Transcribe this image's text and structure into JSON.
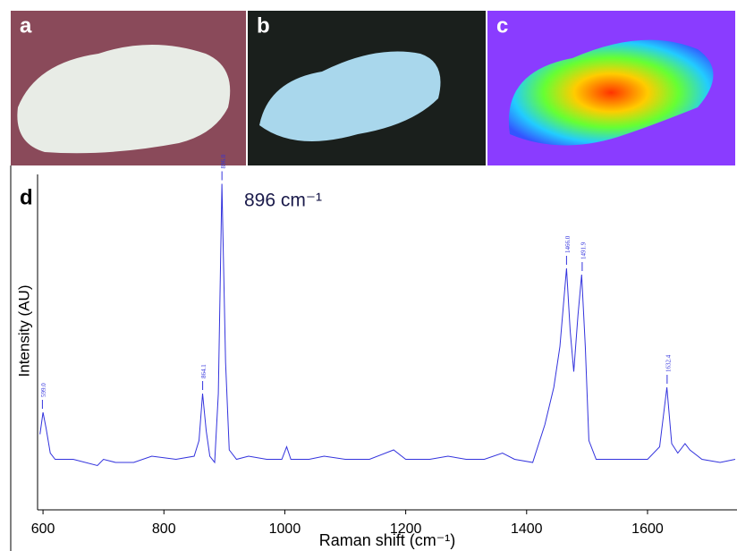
{
  "panels": {
    "a": "a",
    "b": "b",
    "c": "c",
    "d": "d"
  },
  "chart_data": {
    "type": "line",
    "annotation": "896 cm⁻¹",
    "x_label": "Raman shift (cm⁻¹)",
    "y_label": "Intensity (AU)",
    "xlim": [
      591,
      1748
    ],
    "xticks": [
      600,
      800,
      1000,
      1200,
      1400,
      1600
    ],
    "ylim": [
      0,
      100
    ],
    "series": [
      {
        "color": "#3333dd",
        "x": [
          595,
          600,
          605,
          612,
          620,
          650,
          690,
          700,
          720,
          750,
          780,
          820,
          850,
          858,
          864,
          870,
          876,
          884,
          890,
          896,
          902,
          908,
          920,
          940,
          970,
          995,
          1003,
          1010,
          1040,
          1065,
          1100,
          1140,
          1180,
          1200,
          1240,
          1270,
          1300,
          1330,
          1360,
          1380,
          1410,
          1430,
          1445,
          1455,
          1466,
          1472,
          1478,
          1485,
          1491,
          1497,
          1503,
          1515,
          1560,
          1600,
          1620,
          1632,
          1640,
          1650,
          1662,
          1670,
          1690,
          1720,
          1745
        ],
        "values": [
          17,
          24,
          19,
          11,
          9,
          9,
          7,
          9,
          8,
          8,
          10,
          9,
          10,
          15,
          30,
          18,
          10,
          8,
          30,
          97,
          40,
          12,
          9,
          10,
          9,
          9,
          13,
          9,
          9,
          10,
          9,
          9,
          12,
          9,
          9,
          10,
          9,
          9,
          11,
          9,
          8,
          20,
          32,
          45,
          70,
          50,
          37,
          55,
          68,
          45,
          15,
          9,
          9,
          9,
          13,
          32,
          14,
          11,
          14,
          12,
          9,
          8,
          9
        ]
      }
    ],
    "peak_labels": [
      {
        "x": 599.0,
        "label": "599.0"
      },
      {
        "x": 864.1,
        "label": "864.1"
      },
      {
        "x": 896.0,
        "label": "896.0"
      },
      {
        "x": 1466.0,
        "label": "1466.0"
      },
      {
        "x": 1491.9,
        "label": "1491.9"
      },
      {
        "x": 1632.4,
        "label": "1632.4"
      }
    ]
  }
}
